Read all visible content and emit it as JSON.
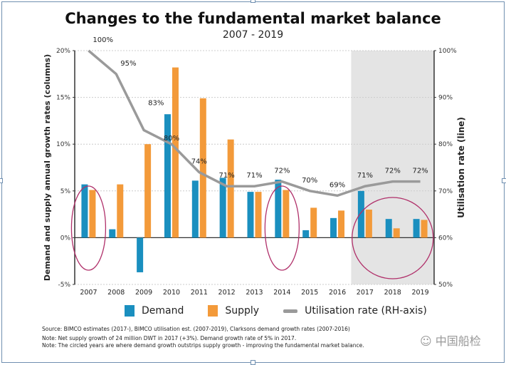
{
  "chart_data": {
    "type": "bar+line",
    "title": "Changes to the fundamental market balance",
    "subtitle": "2007 - 2019",
    "ylabel": "Demand and supply annual growth rates (columns)",
    "y2label": "Utilisation rate (line)",
    "ylim": [
      -5,
      20
    ],
    "y2lim": [
      50,
      100
    ],
    "yticks": [
      "20%",
      "15%",
      "10%",
      "5%",
      "0%",
      "-5%"
    ],
    "y2ticks": [
      "100%",
      "90%",
      "80%",
      "70%",
      "60%",
      "50%"
    ],
    "grid": "horizontal dotted",
    "categories": [
      "2007",
      "2008",
      "2009",
      "2010",
      "2011",
      "2012",
      "2013",
      "2014",
      "2015",
      "2016",
      "2017",
      "2018",
      "2019"
    ],
    "series": [
      {
        "name": "Demand",
        "type": "bar",
        "color": "#1a8fbf",
        "values": [
          5.7,
          0.9,
          -3.7,
          13.2,
          6.1,
          6.4,
          4.9,
          6.2,
          0.8,
          2.1,
          5.0,
          2.0,
          2.0
        ]
      },
      {
        "name": "Supply",
        "type": "bar",
        "color": "#f39a3a",
        "values": [
          5.1,
          5.7,
          10.0,
          18.2,
          14.9,
          10.5,
          4.9,
          5.1,
          3.2,
          2.9,
          3.0,
          1.0,
          1.9
        ]
      },
      {
        "name": "Utilisation rate (RH-axis)",
        "type": "line",
        "axis": "right",
        "color": "#9a9a9a",
        "values": [
          100,
          95,
          83,
          80,
          74,
          71,
          71,
          72,
          70,
          69,
          71,
          72,
          72
        ],
        "labels": [
          "100%",
          "95%",
          "83%",
          "80%",
          "74%",
          "71%",
          "71%",
          "72%",
          "70%",
          "69%",
          "71%",
          "72%",
          "72%"
        ]
      }
    ],
    "shaded_years": [
      "2017",
      "2018",
      "2019"
    ],
    "circled_years": [
      [
        "2007"
      ],
      [
        "2014"
      ],
      [
        "2017",
        "2018",
        "2019"
      ]
    ],
    "circle_color": "#b0306a",
    "legend_position": "bottom"
  },
  "notes": [
    "Source: BIMCO estimates (2017-), BIMCO utilisation est. (2007-2019), Clarksons demand growth rates (2007-2016)",
    "Note: Net supply growth of 24 million DWT in 2017 (+3%). Demand growth rate of 5% in 2017.",
    "Note: The circled years are where demand growth outstrips supply growth - improving the fundamental market balance."
  ],
  "watermark": "中国船检"
}
